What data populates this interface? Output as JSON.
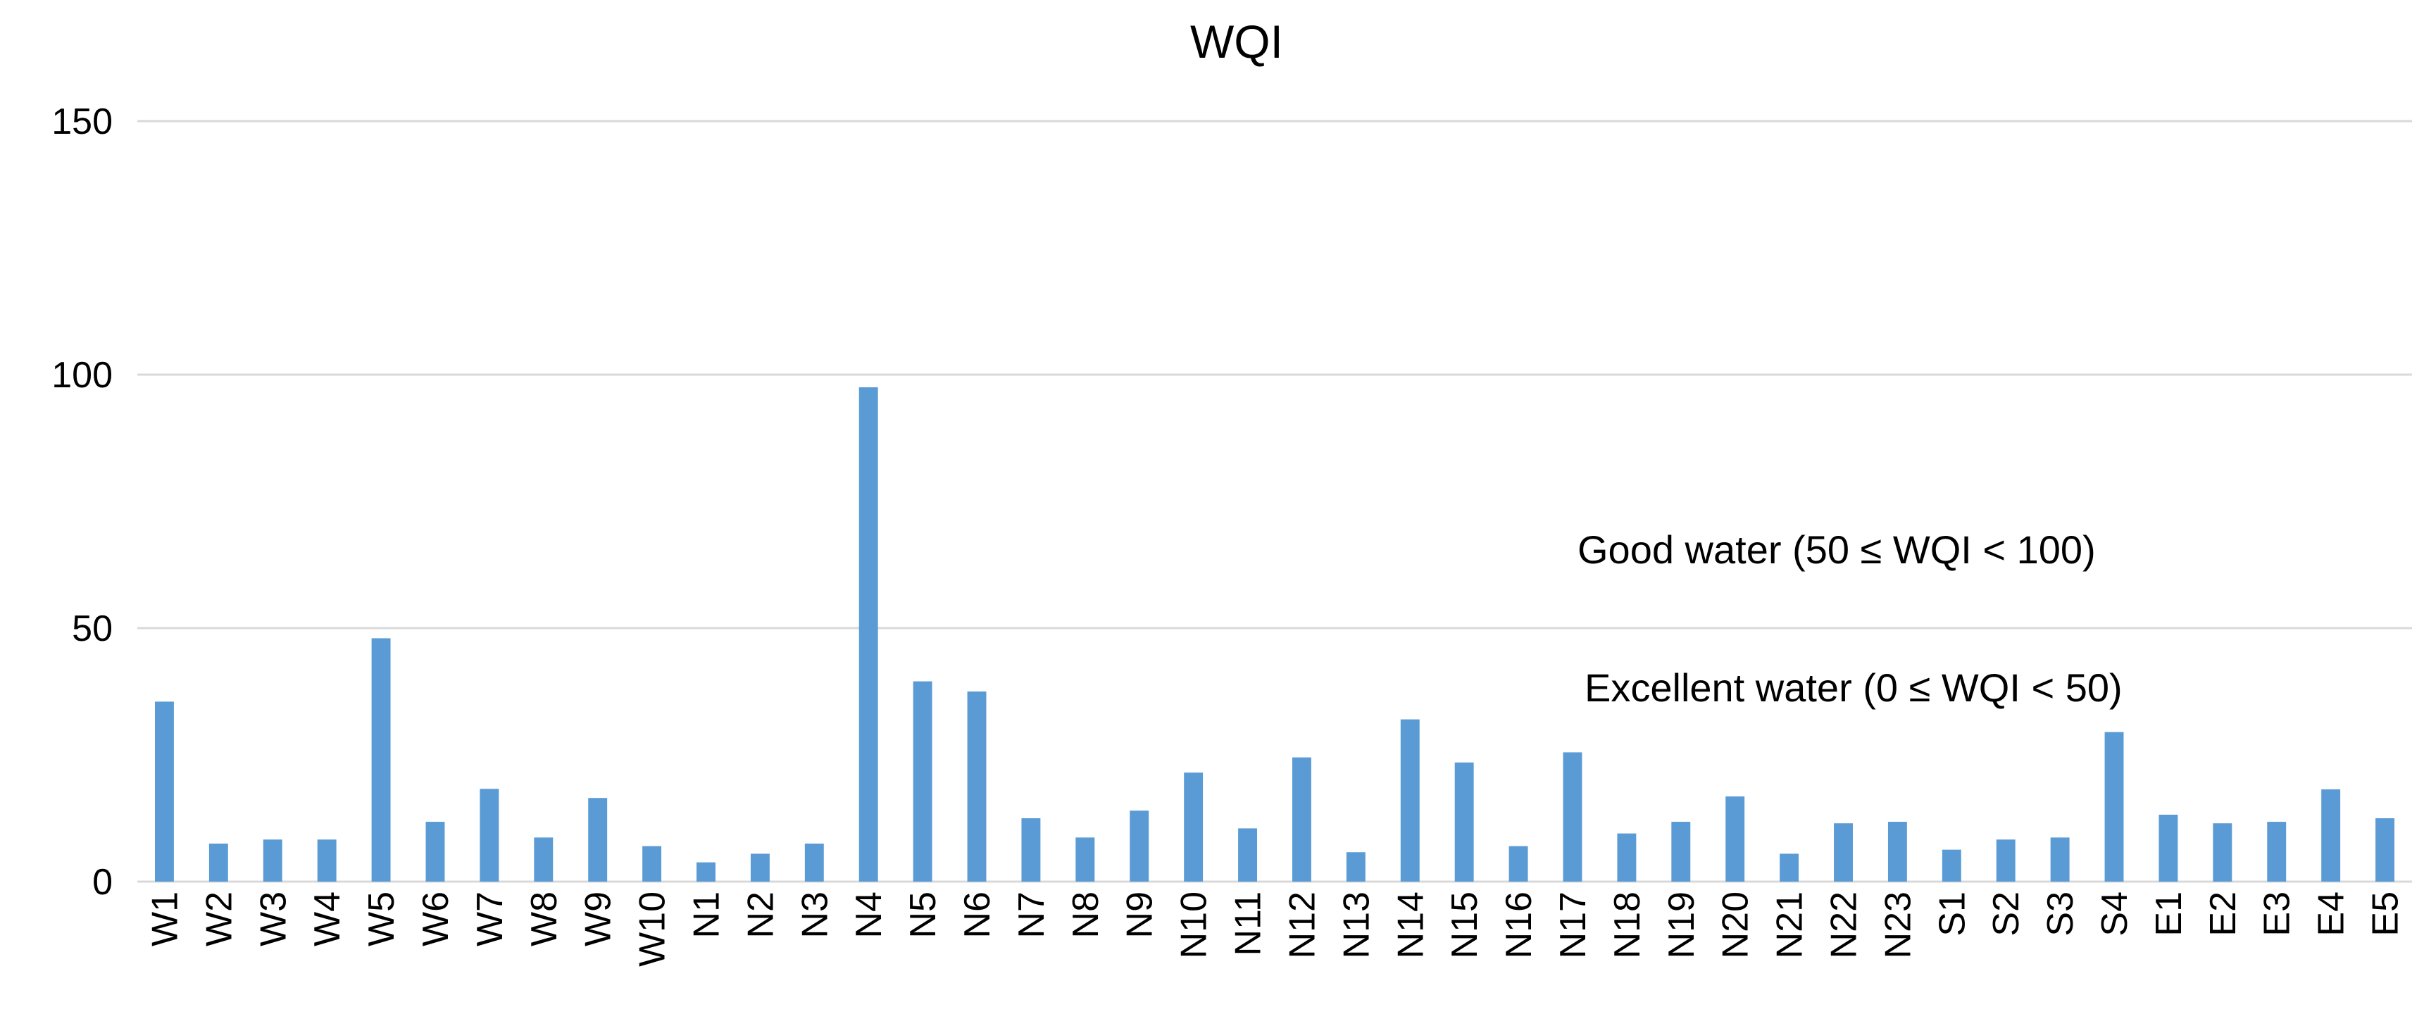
{
  "chart_data": {
    "type": "bar",
    "title": "WQI",
    "xlabel": "",
    "ylabel": "",
    "ylim": [
      0,
      150
    ],
    "yticks": [
      0,
      50,
      100,
      150
    ],
    "grid": true,
    "bar_color": "#5b9bd5",
    "categories": [
      "W1",
      "W2",
      "W3",
      "W4",
      "W5",
      "W6",
      "W7",
      "W8",
      "W9",
      "W10",
      "N1",
      "N2",
      "N3",
      "N4",
      "N5",
      "N6",
      "N7",
      "N8",
      "N9",
      "N10",
      "N11",
      "N12",
      "N13",
      "N14",
      "N15",
      "N16",
      "N17",
      "N18",
      "N19",
      "N20",
      "N21",
      "N22",
      "N23",
      "S1",
      "S2",
      "S3",
      "S4",
      "E1",
      "E2",
      "E3",
      "E4",
      "E5"
    ],
    "values": [
      35.5,
      7.5,
      8.3,
      8.3,
      48,
      11.8,
      18.3,
      8.7,
      16.5,
      7,
      3.8,
      5.5,
      7.5,
      97.5,
      39.5,
      37.5,
      12.5,
      8.7,
      14,
      21.5,
      10.5,
      24.5,
      5.8,
      32,
      23.5,
      7,
      25.5,
      9.5,
      11.8,
      16.8,
      5.5,
      11.5,
      11.8,
      6.3,
      8.3,
      8.7,
      29.5,
      13.2,
      11.5,
      11.8,
      18.2,
      12.5
    ],
    "annotations": [
      {
        "text": "Good water (50 ≤ WQI < 100)"
      },
      {
        "text": "Excellent water (0 ≤ WQI < 50)"
      }
    ]
  }
}
